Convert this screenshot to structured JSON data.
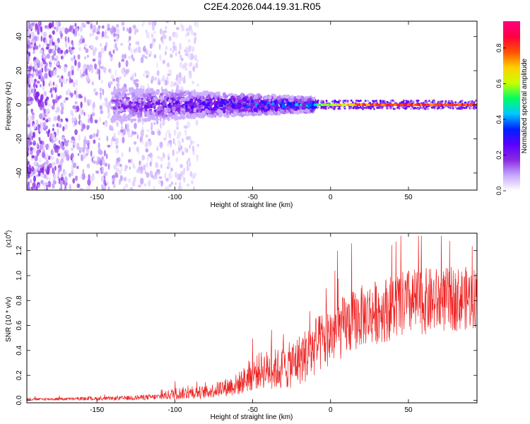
{
  "title": "C2E4.2026.044.19.31.R05",
  "chart_data": [
    {
      "type": "heatmap",
      "name": "spectrogram",
      "xlabel": "Height of straight line (km)",
      "ylabel": "Frequency (Hz)",
      "xlim": [
        -195,
        94
      ],
      "ylim": [
        -50,
        49
      ],
      "xticks": [
        -150,
        -100,
        -50,
        0,
        50
      ],
      "yticks": [
        -40,
        -20,
        0,
        20,
        40
      ],
      "colorbar": {
        "label": "Normalized spectral amplitude",
        "range": [
          0,
          0.95
        ],
        "ticks": [
          "0.0",
          "0.2",
          "0.4",
          "0.6",
          "0.8"
        ],
        "tick_values": [
          0,
          0.2,
          0.4,
          0.6,
          0.8
        ],
        "colormap": [
          "#ffffff",
          "#c8a8ff",
          "#8a2be2",
          "#5a00ff",
          "#0020ff",
          "#00c8ff",
          "#00ff60",
          "#c8ff00",
          "#ffd000",
          "#ff5000",
          "#ff0040",
          "#ff0080"
        ]
      },
      "description_of_content": "Scattered weak energy over the full frequency band for heights below about -100 km; broadband energy near 0 Hz from -140 km to -10 km; a sharp high-amplitude line at 0 Hz from about -10 km to +94 km.",
      "band": [
        {
          "x": -140,
          "amp": 0.2
        },
        {
          "x": -100,
          "amp": 0.3
        },
        {
          "x": -50,
          "amp": 0.4
        },
        {
          "x": -20,
          "amp": 0.45
        },
        {
          "x": -5,
          "amp": 0.6
        },
        {
          "x": 20,
          "amp": 0.85
        },
        {
          "x": 50,
          "amp": 0.9
        },
        {
          "x": 90,
          "amp": 0.9
        }
      ]
    },
    {
      "type": "line",
      "name": "snr",
      "xlabel": "Height of straight line (km)",
      "ylabel": "SNR (10 * v/v)",
      "y_multiplier": "(x10",
      "y_multiplier_exp": "4",
      "y_multiplier_close": ")",
      "xlim": [
        -195,
        94
      ],
      "ylim": [
        -0.02,
        1.34
      ],
      "xticks": [
        -150,
        -100,
        -50,
        0,
        50
      ],
      "yticks": [
        "0.0",
        "0.2",
        "0.4",
        "0.6",
        "0.8",
        "1.0",
        "1.2"
      ],
      "ytick_values": [
        0.0,
        0.2,
        0.4,
        0.6,
        0.8,
        1.0,
        1.2
      ],
      "color": "#ee2222",
      "envelope": [
        {
          "x": -195,
          "base": 0.005,
          "spread": 0.02
        },
        {
          "x": -140,
          "base": 0.01,
          "spread": 0.03
        },
        {
          "x": -110,
          "base": 0.02,
          "spread": 0.05
        },
        {
          "x": -100,
          "base": 0.04,
          "spread": 0.1
        },
        {
          "x": -80,
          "base": 0.05,
          "spread": 0.1
        },
        {
          "x": -60,
          "base": 0.1,
          "spread": 0.18
        },
        {
          "x": -45,
          "base": 0.2,
          "spread": 0.3
        },
        {
          "x": -30,
          "base": 0.2,
          "spread": 0.35
        },
        {
          "x": -15,
          "base": 0.3,
          "spread": 0.45
        },
        {
          "x": 0,
          "base": 0.45,
          "spread": 0.5
        },
        {
          "x": 20,
          "base": 0.6,
          "spread": 0.5
        },
        {
          "x": 50,
          "base": 0.7,
          "spread": 0.55
        },
        {
          "x": 94,
          "base": 0.75,
          "spread": 0.5
        }
      ]
    }
  ]
}
